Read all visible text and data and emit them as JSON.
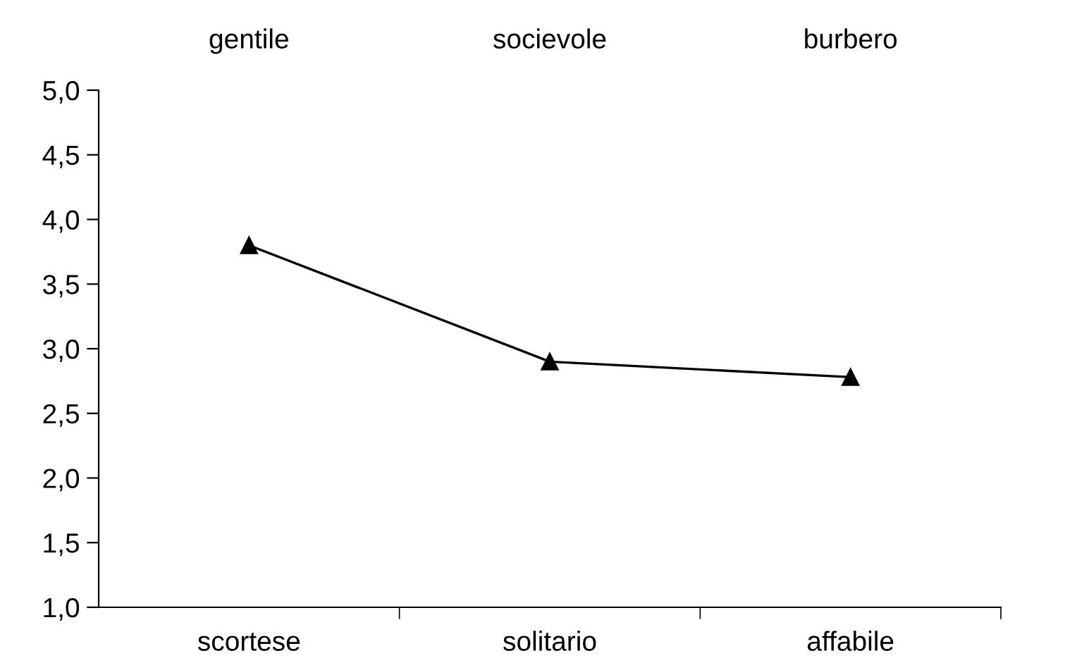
{
  "chart_data": {
    "type": "line",
    "categories": [
      "scortese",
      "solitario",
      "affabile"
    ],
    "series": [
      {
        "color": "#000000",
        "values": [
          3.8,
          2.9,
          2.78
        ]
      }
    ],
    "marker": "triangle",
    "line_style": "solid",
    "grid": false,
    "legend": false,
    "ylim": [
      1.0,
      5.0
    ],
    "yticks": [
      {
        "value": 1.0,
        "label": "1,0"
      },
      {
        "value": 1.5,
        "label": "1,5"
      },
      {
        "value": 2.0,
        "label": "2,0"
      },
      {
        "value": 2.5,
        "label": "2,5"
      },
      {
        "value": 3.0,
        "label": "3,0"
      },
      {
        "value": 3.5,
        "label": "3,5"
      },
      {
        "value": 4.0,
        "label": "4,0"
      },
      {
        "value": 4.5,
        "label": "4,5"
      },
      {
        "value": 5.0,
        "label": "5,0"
      }
    ],
    "annotations": [
      "gentile",
      "socievole",
      "burbero"
    ]
  }
}
